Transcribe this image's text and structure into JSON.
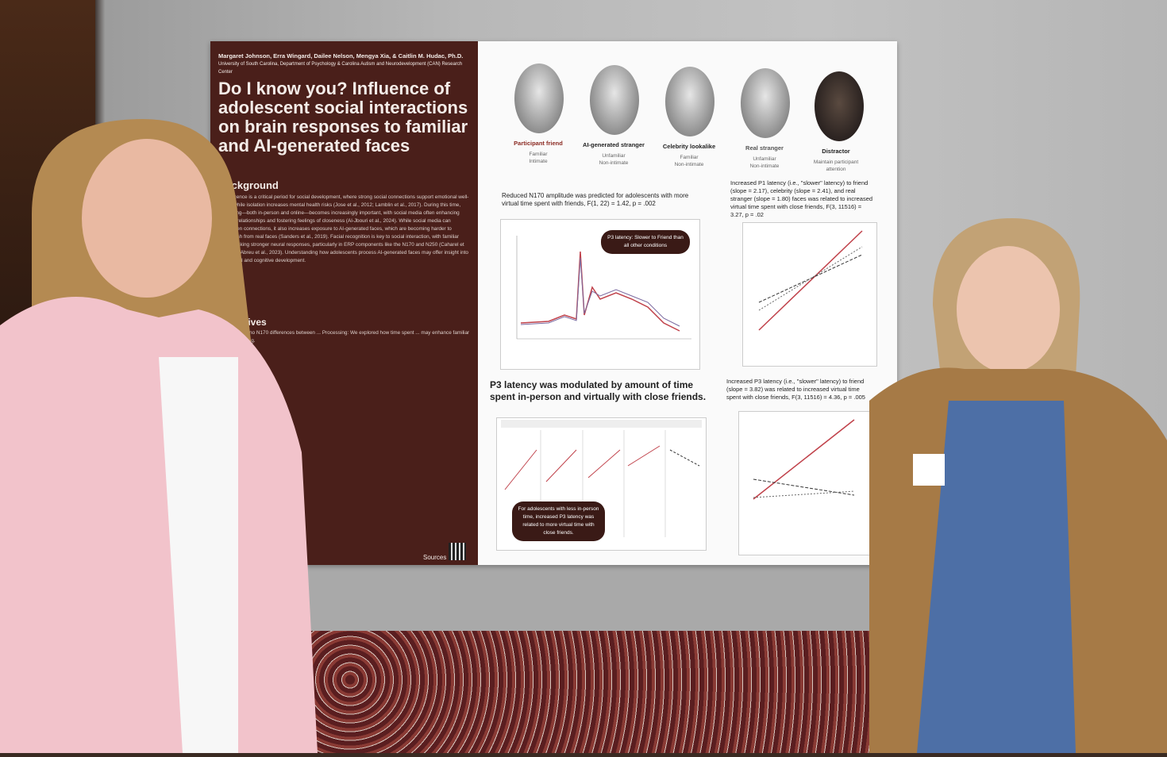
{
  "poster": {
    "authors": "Margaret Johnson, Erra Wingard, Dailee Nelson, Mengya Xia, & Caitlin M. Hudac, Ph.D.",
    "affiliation": "University of South Carolina, Department of Psychology & Carolina Autism and Neurodevelopment (CAN) Research Center",
    "title": "Do I know you? Influence of adolescent social interactions on brain responses to familiar and AI-generated faces",
    "background_heading": "Background",
    "background_text": "Adolescence is a critical period for social development, where strong social connections support emotional well-being, while isolation increases mental health risks (Jose et al., 2012; Lamblin et al., 2017). During this time, socializing—both in-person and online—becomes increasingly important, with social media often enhancing existing relationships and fostering feelings of closeness (Al-Jbouri et al., 2024). While social media can strengthen connections, it also increases exposure to AI-generated faces, which are becoming harder to distinguish from real faces (Sanders et al., 2019). Facial recognition is key to social interaction, with familiar faces evoking stronger neural responses, particularly in ERP components like the N170 and N250 (Caharel et al., 2002; Abreu et al., 2023). Understanding how adolescents process AI-generated faces may offer insight into their social and cognitive development.",
    "objectives_heading": "Objectives",
    "objectives_text": "We expected no N170 differences between ... Processing: We explored how time spent ... may enhance familiar face processing.",
    "sources_label": "Sources",
    "faces": [
      {
        "label": "Participant friend",
        "sub1": "Familiar",
        "sub2": "Intimate",
        "color": "#8b2a22"
      },
      {
        "label": "AI-generated stranger",
        "sub1": "Unfamiliar",
        "sub2": "Non-intimate",
        "color": "#222222"
      },
      {
        "label": "Celebrity lookalike",
        "sub1": "Familiar",
        "sub2": "Non-intimate",
        "color": "#222222"
      },
      {
        "label": "Real stranger",
        "sub1": "Unfamiliar",
        "sub2": "Non-intimate",
        "color": "#555555"
      },
      {
        "label": "Distractor",
        "sub1": "Maintain participant",
        "sub2": "attention",
        "color": "#222222"
      }
    ],
    "n170_heading": "Reduced N170 amplitude was predicted for adolescents with more virtual time spent with friends, F(1, 22) = 1.42, p = .002",
    "p3_tip": "P3 latency: Slower to Friend than all other conditions",
    "p3_heading": "P3 latency was modulated by amount of time spent in-person and virtually with close friends.",
    "p3_tip2": "For adolescents with less in-person time, increased P3 latency was related to more virtual time with close friends.",
    "p1_heading": "Increased P1 latency (i.e., \"slower\" latency) to friend (slope = 2.17), celebrity (slope = 2.41), and real stranger (slope = 1.80) faces was related to increased virtual time spent with close friends, F(3, 11516) = 3.27, p = .02",
    "p3b_heading": "Increased P3 latency (i.e., \"slower\" latency) to friend (slope = 3.82) was related to increased virtual time spent with close friends, F(3, 11516) = 4.36, p = .005"
  },
  "colors": {
    "accent": "#4a1f1a",
    "friend_line": "#c0414a"
  }
}
